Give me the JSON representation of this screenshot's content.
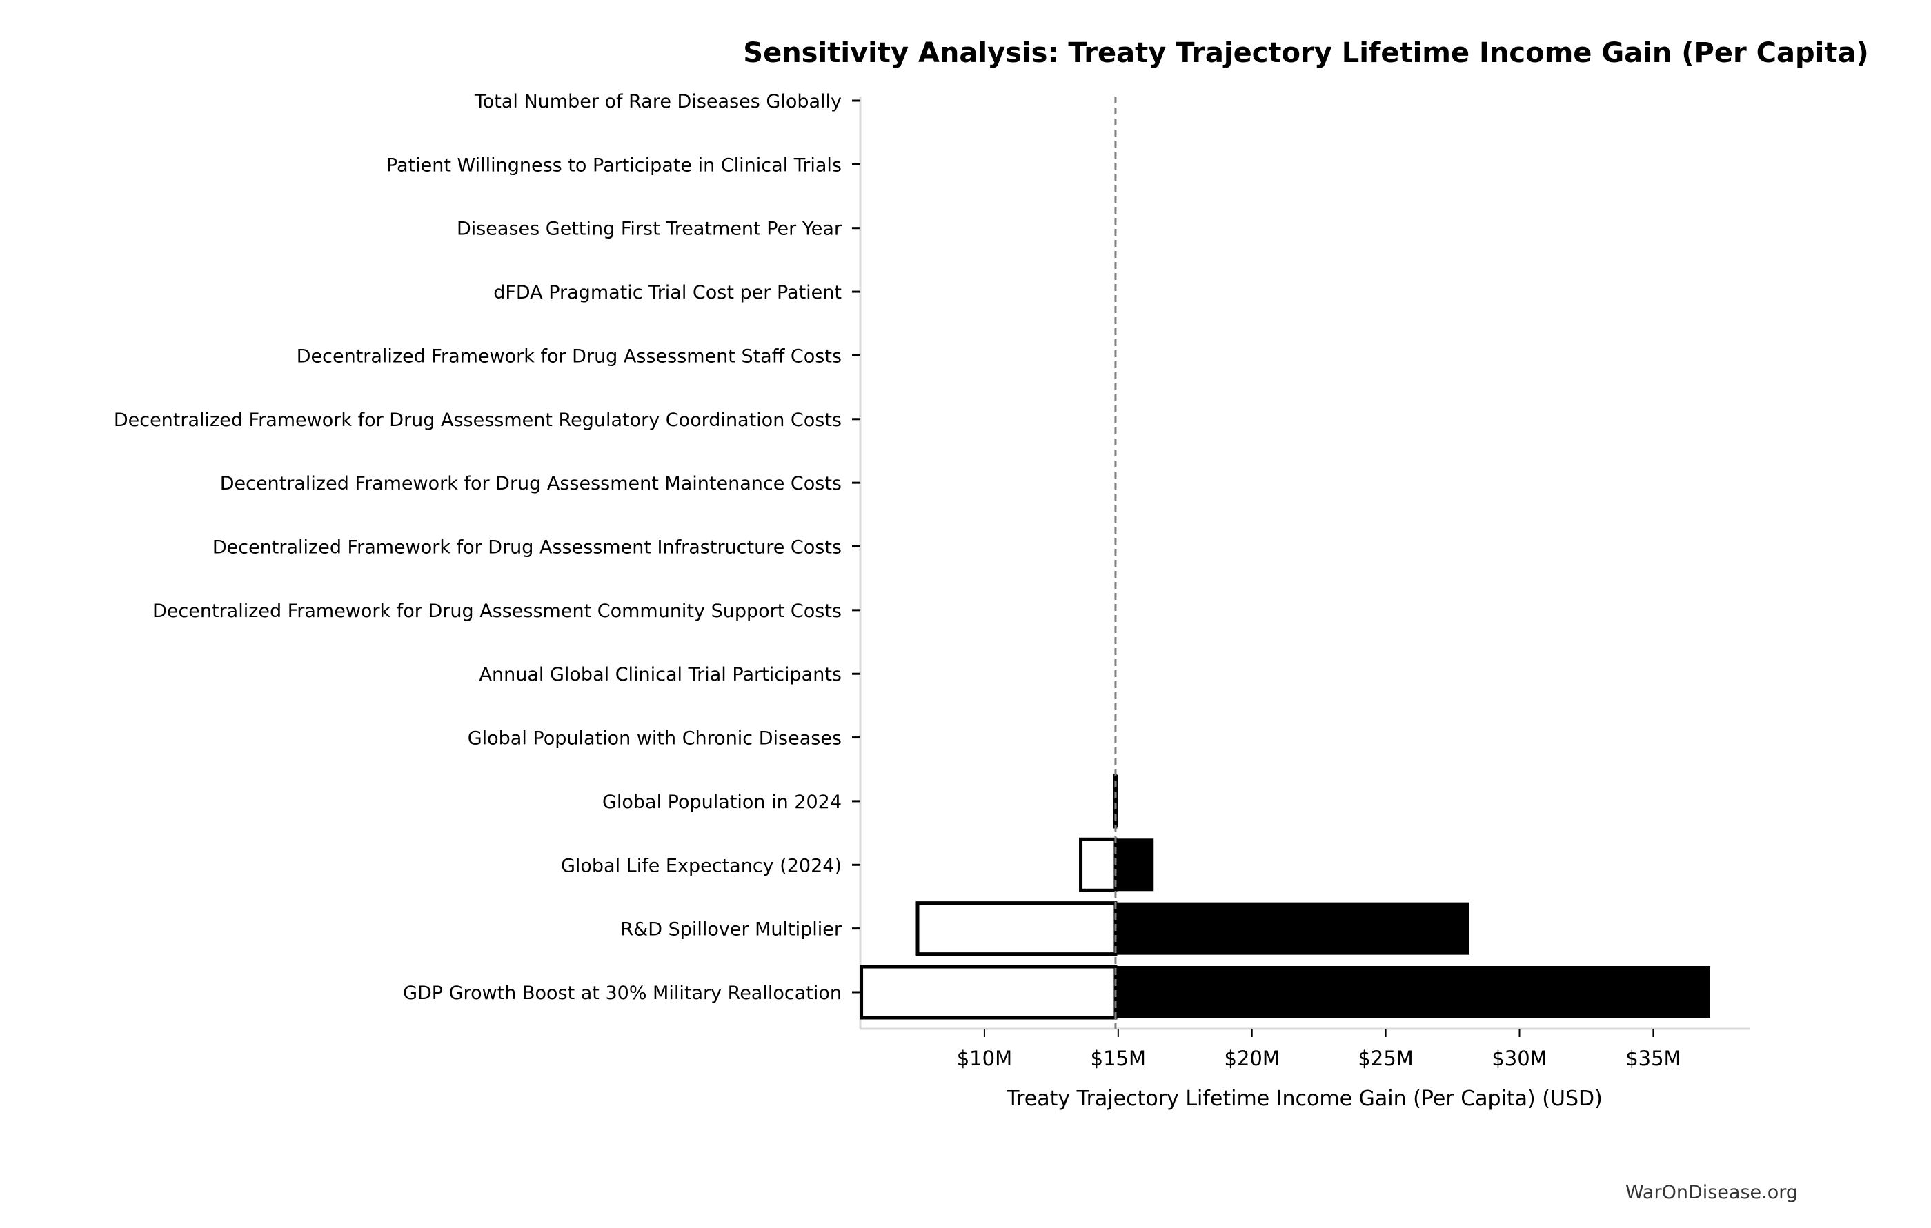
{
  "chart_data": {
    "type": "bar",
    "orientation": "horizontal",
    "style": "tornado",
    "title": "Sensitivity Analysis: Treaty Trajectory Lifetime Income Gain (Per Capita)",
    "xlabel": "Treaty Trajectory Lifetime Income Gain (Per Capita) (USD)",
    "ylabel": "",
    "xlim": [
      5.36,
      38.6
    ],
    "x_unit": "million USD",
    "baseline": 14.9,
    "xticks": [
      10,
      15,
      20,
      25,
      30,
      35
    ],
    "xtick_labels": [
      "$10M",
      "$15M",
      "$20M",
      "$25M",
      "$30M",
      "$35M"
    ],
    "grid": false,
    "categories": [
      "Total Number of Rare Diseases Globally",
      "Patient Willingness to Participate in Clinical Trials",
      "Diseases Getting First Treatment Per Year",
      "dFDA Pragmatic Trial Cost per Patient",
      "Decentralized Framework for Drug Assessment Staff Costs",
      "Decentralized Framework for Drug Assessment Regulatory Coordination Costs",
      "Decentralized Framework for Drug Assessment Maintenance Costs",
      "Decentralized Framework for Drug Assessment Infrastructure Costs",
      "Decentralized Framework for Drug Assessment Community Support Costs",
      "Annual Global Clinical Trial Participants",
      "Global Population with Chronic Diseases",
      "Global Population in 2024",
      "Global Life Expectancy (2024)",
      "R&D Spillover Multiplier",
      "GDP Growth Boost at 30% Military Reallocation"
    ],
    "series": [
      {
        "role": "low",
        "values": [
          14.9,
          14.9,
          14.9,
          14.9,
          14.9,
          14.9,
          14.9,
          14.9,
          14.9,
          14.9,
          14.9,
          14.88,
          13.6,
          7.5,
          5.4
        ]
      },
      {
        "role": "high",
        "values": [
          14.9,
          14.9,
          14.9,
          14.9,
          14.9,
          14.9,
          14.9,
          14.9,
          14.9,
          14.9,
          14.9,
          14.95,
          16.3,
          28.1,
          37.1
        ]
      }
    ],
    "colors": {
      "low_fill": "#ffffff",
      "high_fill": "#000000",
      "stroke": "#000000",
      "baseline": "#808080",
      "axis": "#d9d9d9"
    }
  },
  "watermark": "WarOnDisease.org"
}
